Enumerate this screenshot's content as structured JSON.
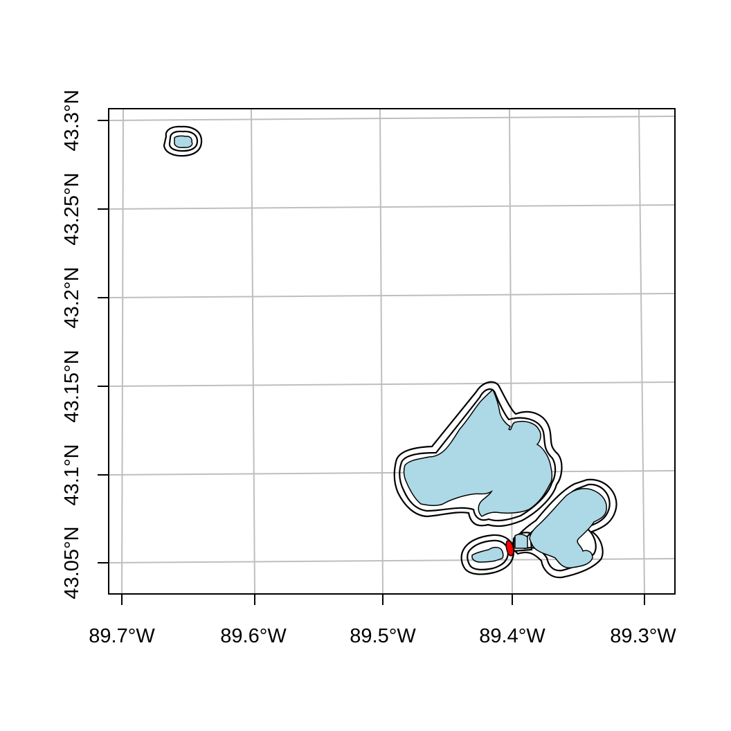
{
  "map": {
    "x_axis": {
      "labels": [
        "89.7°W",
        "89.6°W",
        "89.5°W",
        "89.4°W",
        "89.3°W"
      ],
      "values": [
        -89.7,
        -89.6,
        -89.5,
        -89.4,
        -89.3
      ]
    },
    "y_axis": {
      "labels": [
        "43.05°N",
        "43.1°N",
        "43.15°N",
        "43.2°N",
        "43.25°N",
        "43.3°N"
      ],
      "values": [
        43.05,
        43.1,
        43.15,
        43.2,
        43.25,
        43.3
      ]
    },
    "grid": true,
    "colors": {
      "lake_fill": "#add8e6",
      "highlight_fill": "#ff0000",
      "grid": "#bebebe",
      "outline": "#000000"
    },
    "features": [
      {
        "name": "small northwest lake",
        "type": "lake"
      },
      {
        "name": "large lake",
        "type": "lake"
      },
      {
        "name": "east lake",
        "type": "lake"
      },
      {
        "name": "southwest small lake",
        "type": "lake"
      },
      {
        "name": "middle small lake",
        "type": "lake"
      },
      {
        "name": "highlighted connector",
        "type": "highlight"
      }
    ]
  }
}
